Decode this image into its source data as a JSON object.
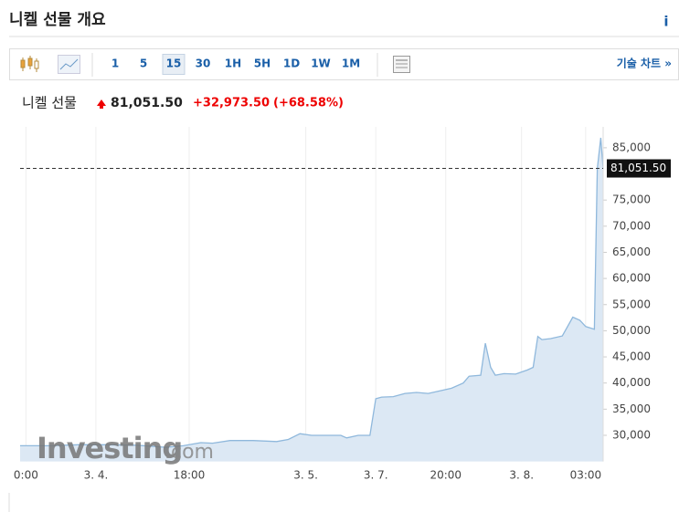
{
  "header": {
    "title": "니켈 선물 개요",
    "info": "i"
  },
  "toolbar": {
    "intervals": [
      "1",
      "5",
      "15",
      "30",
      "1H",
      "5H",
      "1D",
      "1W",
      "1M"
    ],
    "selected": "15",
    "link": "기술 차트 »"
  },
  "quote": {
    "name": "니켈 선물",
    "price": "81,051.50",
    "change": "+32,973.50",
    "change_pct": "(+68.58%)"
  },
  "watermark": {
    "brand": "Investing",
    "suffix": ".com"
  },
  "chart_data": {
    "type": "area",
    "color": "#8fb8dc",
    "fill": "#dce8f4",
    "x": [
      0,
      5,
      10,
      15,
      20,
      25,
      28,
      31,
      33,
      36,
      40,
      44,
      46,
      48,
      50,
      53,
      55,
      56,
      58,
      60,
      61,
      62,
      64,
      66,
      68,
      70,
      72,
      74,
      76,
      77,
      79,
      79.8,
      80.7,
      81.5,
      83,
      85,
      87,
      88,
      88.8,
      89.5,
      91,
      93,
      94.8,
      96,
      97,
      98.5,
      99,
      99.6,
      100
    ],
    "values": [
      28000,
      28000,
      28200,
      28200,
      28100,
      27700,
      28000,
      28600,
      28500,
      29000,
      29000,
      28800,
      29200,
      30300,
      30000,
      30000,
      30000,
      29500,
      30000,
      30000,
      37000,
      37300,
      37400,
      38000,
      38200,
      38000,
      38500,
      39000,
      40000,
      41300,
      41500,
      47600,
      43000,
      41500,
      41800,
      41700,
      42500,
      43000,
      48900,
      48300,
      48500,
      49000,
      52600,
      52000,
      50800,
      50300,
      81000,
      86900,
      81051.5
    ],
    "xlim": [
      0,
      100
    ],
    "xticks": [
      {
        "value": 1,
        "label": "0:00"
      },
      {
        "value": 13,
        "label": "3. 4."
      },
      {
        "value": 29,
        "label": "18:00"
      },
      {
        "value": 49,
        "label": "3. 5."
      },
      {
        "value": 61,
        "label": "3. 7."
      },
      {
        "value": 73,
        "label": "20:00"
      },
      {
        "value": 86,
        "label": "3. 8."
      },
      {
        "value": 97,
        "label": "03:00"
      }
    ],
    "ylim": [
      25000,
      89000
    ],
    "yticks": [
      {
        "value": 30000,
        "label": "30,000"
      },
      {
        "value": 35000,
        "label": "35,000"
      },
      {
        "value": 40000,
        "label": "40,000"
      },
      {
        "value": 45000,
        "label": "45,000"
      },
      {
        "value": 50000,
        "label": "50,000"
      },
      {
        "value": 55000,
        "label": "55,000"
      },
      {
        "value": 60000,
        "label": "60,000"
      },
      {
        "value": 65000,
        "label": "65,000"
      },
      {
        "value": 70000,
        "label": "70,000"
      },
      {
        "value": 75000,
        "label": "75,000"
      },
      {
        "value": 85000,
        "label": "85,000"
      }
    ],
    "current": {
      "value": 81051.5,
      "label": "81,051.50"
    },
    "grid": "x"
  }
}
